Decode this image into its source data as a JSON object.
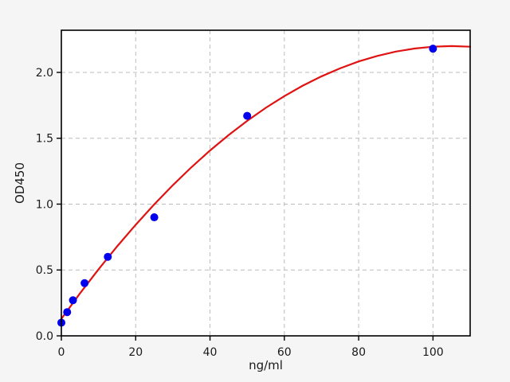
{
  "figure": {
    "background_color": "#f5f5f5",
    "plot_background_color": "#ffffff",
    "grid_color": "#bbbbbb",
    "spine_color": "#000000",
    "text_color": "#1a1a1a",
    "scatter_color": "#0000ee",
    "curve_color": "#e01212"
  },
  "chart_data": {
    "type": "scatter",
    "title": "",
    "xlabel": "ng/ml",
    "ylabel": "OD450",
    "xlim": [
      0,
      110
    ],
    "ylim": [
      0,
      2.32
    ],
    "xticks": [
      0,
      20,
      40,
      60,
      80,
      100
    ],
    "xtick_labels": [
      "0",
      "20",
      "40",
      "60",
      "80",
      "100"
    ],
    "yticks": [
      0,
      0.5,
      1.0,
      1.5,
      2.0
    ],
    "ytick_labels": [
      "0.0",
      "0.5",
      "1.0",
      "1.5",
      "2.0"
    ],
    "grid": true,
    "grid_style": "dashed",
    "legend": "none",
    "series": [
      {
        "name": "standard-points",
        "type": "scatter",
        "color": "#0000ee",
        "marker_radius": 5,
        "x": [
          0,
          1.56,
          3.12,
          6.25,
          12.5,
          25,
          50,
          100
        ],
        "y": [
          0.1,
          0.18,
          0.27,
          0.4,
          0.6,
          0.9,
          1.67,
          2.18
        ]
      },
      {
        "name": "fit-curve",
        "type": "line",
        "color": "#e01212",
        "line_width": 2.2,
        "x": [
          0,
          5,
          10,
          15,
          20,
          25,
          30,
          35,
          40,
          45,
          50,
          55,
          60,
          65,
          70,
          75,
          80,
          85,
          90,
          95,
          100,
          105,
          110
        ],
        "y": [
          0.129,
          0.322,
          0.505,
          0.679,
          0.843,
          0.998,
          1.144,
          1.28,
          1.407,
          1.524,
          1.632,
          1.731,
          1.82,
          1.9,
          1.97,
          2.031,
          2.083,
          2.125,
          2.158,
          2.181,
          2.195,
          2.2,
          2.195
        ]
      }
    ]
  }
}
